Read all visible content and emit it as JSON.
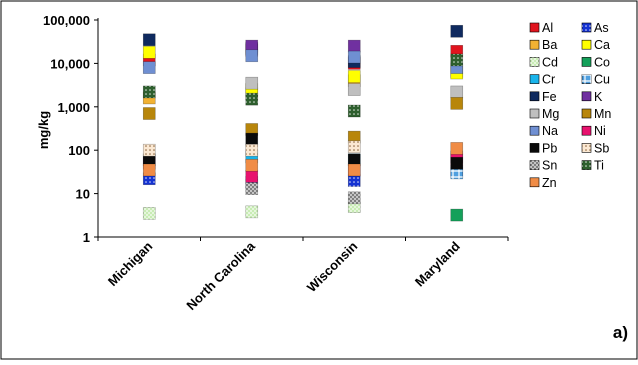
{
  "chart_data": {
    "type": "scatter",
    "title": "",
    "xlabel": "",
    "ylabel": "mg/kg",
    "y_scale": "log",
    "ylim": [
      1,
      100000
    ],
    "y_ticks": [
      1,
      10,
      100,
      1000,
      10000,
      100000
    ],
    "y_tick_labels": [
      "1",
      "10",
      "100",
      "1,000",
      "10,000",
      "100,000"
    ],
    "grid": false,
    "legend_position": "right",
    "panel_label": "a)",
    "categories": [
      "Michigan",
      "North Carolina",
      "Wisconsin",
      "Maryland"
    ],
    "series": [
      {
        "name": "Al",
        "color": "#e0141e",
        "pattern": "solid",
        "values": [
          12000,
          20000,
          10000,
          19000
        ]
      },
      {
        "name": "As",
        "color": "#1432d2",
        "pattern": "dot",
        "values": [
          22,
          18,
          20,
          32
        ]
      },
      {
        "name": "Ba",
        "color": "#f2b233",
        "pattern": "solid",
        "values": [
          1600,
          2000,
          4000,
          6500
        ]
      },
      {
        "name": "Ca",
        "color": "#ffff00",
        "pattern": "solid",
        "values": [
          18000,
          2500,
          5000,
          6000
        ]
      },
      {
        "name": "Cd",
        "color": "#c8ecb4",
        "pattern": "check",
        "values": [
          3.5,
          3.8,
          5,
          null
        ]
      },
      {
        "name": "Co",
        "color": "#14a05a",
        "pattern": "solid",
        "values": [
          null,
          null,
          null,
          3.2
        ]
      },
      {
        "name": "Cr",
        "color": "#19b4eb",
        "pattern": "solid",
        "values": [
          60,
          70,
          60,
          70
        ]
      },
      {
        "name": "Cu",
        "color": "#4f9fdf",
        "pattern": "grid",
        "values": [
          null,
          null,
          null,
          30
        ]
      },
      {
        "name": "Fe",
        "color": "#0f2a5f",
        "pattern": "solid",
        "values": [
          35000,
          22000,
          11000,
          55000
        ]
      },
      {
        "name": "K",
        "color": "#7030a0",
        "pattern": "solid",
        "values": [
          null,
          25000,
          25000,
          null
        ]
      },
      {
        "name": "Mg",
        "color": "#bfbfbf",
        "pattern": "solid",
        "values": [
          null,
          3500,
          2500,
          2200
        ]
      },
      {
        "name": "Mn",
        "color": "#b8860b",
        "pattern": "solid",
        "values": [
          700,
          300,
          200,
          1200
        ]
      },
      {
        "name": "Na",
        "color": "#6f8fd2",
        "pattern": "solid",
        "values": [
          8000,
          15000,
          14000,
          8000
        ]
      },
      {
        "name": "Ni",
        "color": "#e8126e",
        "pattern": "solid",
        "values": [
          50,
          25,
          35,
          60
        ]
      },
      {
        "name": "Pb",
        "color": "#0a0a0a",
        "pattern": "solid",
        "values": [
          60,
          180,
          60,
          50
        ]
      },
      {
        "name": "Sb",
        "color": "#fbe8d2",
        "pattern": "dot",
        "values": [
          100,
          100,
          120,
          null
        ]
      },
      {
        "name": "Sn",
        "color": "#7f7f7f",
        "pattern": "check",
        "values": [
          null,
          13,
          8,
          null
        ]
      },
      {
        "name": "Ti",
        "color": "#2e5f2e",
        "pattern": "dot",
        "values": [
          2200,
          1500,
          800,
          12000
        ]
      },
      {
        "name": "Zn",
        "color": "#f08c46",
        "pattern": "solid",
        "values": [
          35,
          45,
          35,
          110
        ]
      }
    ]
  }
}
